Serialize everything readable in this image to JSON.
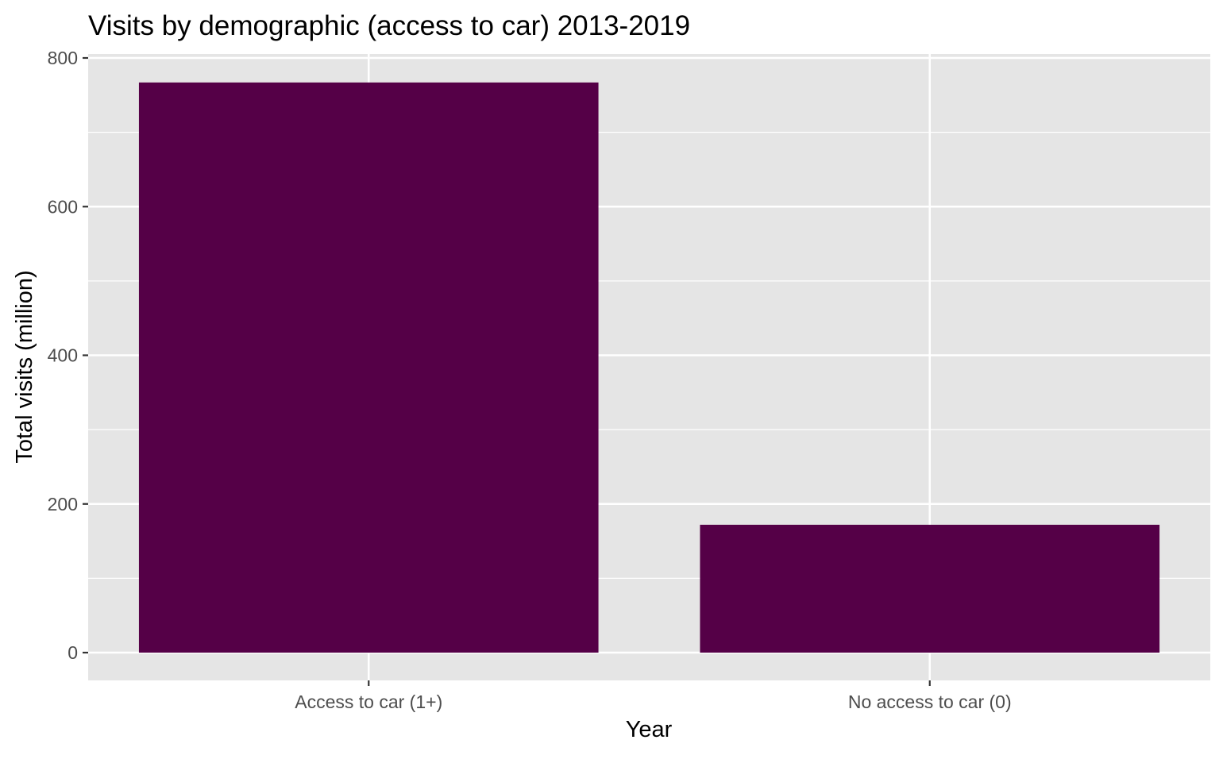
{
  "colors": {
    "panel_background": "#e5e5e5",
    "grid": "#ffffff",
    "bar_fill": "#550047",
    "tick_text": "#4d4d4d",
    "title_text": "#000000"
  },
  "chart_data": {
    "type": "bar",
    "title": "Visits by demographic (access to car) 2013-2019",
    "xlabel": "Year",
    "ylabel": "Total visits (million)",
    "categories": [
      "Access to car (1+)",
      "No access to car (0)"
    ],
    "values": [
      767,
      172
    ],
    "ylim": [
      0,
      800
    ],
    "y_ticks": [
      0,
      200,
      400,
      600,
      800
    ],
    "y_tick_labels": [
      "0",
      "200",
      "400",
      "600",
      "800"
    ],
    "grid": true,
    "legend": "none"
  }
}
